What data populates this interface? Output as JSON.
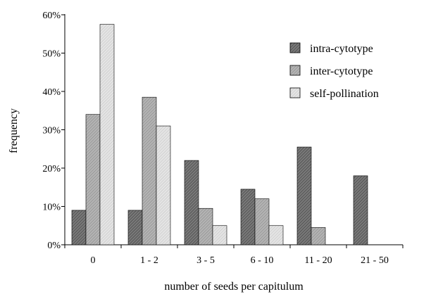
{
  "chart_data": {
    "type": "bar",
    "xlabel": "number of seeds per capitulum",
    "ylabel": "frequency",
    "ylim": [
      0,
      60
    ],
    "y_tick_values": [
      0,
      10,
      20,
      30,
      40,
      50,
      60
    ],
    "y_tick_labels": [
      "0%",
      "10%",
      "20%",
      "30%",
      "40%",
      "50%",
      "60%"
    ],
    "categories": [
      "0",
      "1 - 2",
      "3 - 5",
      "6 - 10",
      "11 - 20",
      "21 - 50"
    ],
    "series": [
      {
        "name": "intra-cytotype",
        "values": [
          9,
          9,
          22,
          14.5,
          25.5,
          18
        ],
        "color": "#6e6e6e"
      },
      {
        "name": "inter-cytotype",
        "values": [
          34,
          38.5,
          9.5,
          12,
          4.5,
          0
        ],
        "color": "#a9a9a9"
      },
      {
        "name": "self-pollination",
        "values": [
          57.5,
          31,
          5,
          5,
          0,
          0
        ],
        "color": "#dadada"
      }
    ],
    "legend_position": "top-right",
    "grid": false
  }
}
